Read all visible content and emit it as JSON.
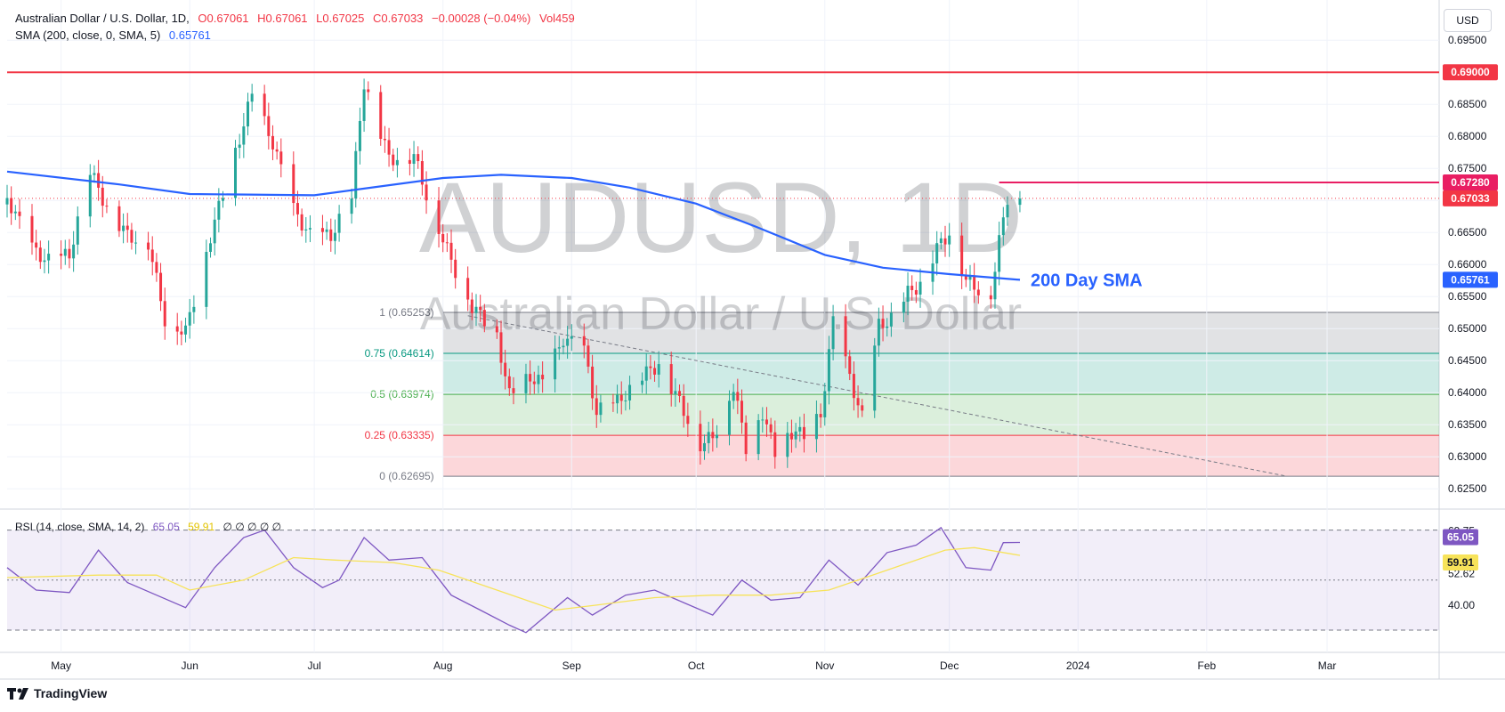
{
  "header": {
    "symbol": "Australian Dollar / U.S. Dollar, 1D,",
    "open": "O0.67061",
    "high": "H0.67061",
    "low": "L0.67025",
    "close": "C0.67033",
    "change": "−0.00028 (−0.04%)",
    "volume": "Vol459",
    "sma_label": "SMA (200, close, 0, SMA, 5)",
    "sma_value": "0.65761"
  },
  "currency": "USD",
  "rsi_header": {
    "label": "RSI (14, close, SMA, 14, 2)",
    "rsi_value": "65.05",
    "sma_value": "59.91",
    "extras": "∅ ∅   ∅ ∅ ∅"
  },
  "watermark": {
    "symbol": "AUDUSD, 1D",
    "name": "Australian Dollar / U.S. Dollar"
  },
  "branding": "TradingView",
  "colors": {
    "up": "#26a69a",
    "down": "#f23645",
    "sma": "#2962ff",
    "rsi": "#7e57c2",
    "rsi_ma": "#f7e35a",
    "resistance": "#f23645"
  },
  "chart_data": [
    {
      "type": "candlestick",
      "title": "Australian Dollar / U.S. Dollar, 1D",
      "y_ticks": [
        0.695,
        0.69,
        0.685,
        0.68,
        0.675,
        0.67,
        0.665,
        0.66,
        0.655,
        0.65,
        0.645,
        0.64,
        0.635,
        0.63,
        0.625
      ],
      "ylim": [
        0.6235,
        0.6985
      ],
      "x_labels": [
        "May",
        "Jun",
        "Jul",
        "Aug",
        "Sep",
        "Oct",
        "Nov",
        "Dec",
        "2024",
        "Feb",
        "Mar"
      ],
      "x_label_dates": [
        "2023-05-01",
        "2023-06-01",
        "2023-07-01",
        "2023-08-01",
        "2023-09-01",
        "2023-10-01",
        "2023-11-01",
        "2023-12-01",
        "2024-01-01",
        "2024-02-01",
        "2024-03-01"
      ],
      "xlim": [
        "2023-04-18",
        "2024-03-28"
      ],
      "horizontal_lines": [
        {
          "value": 0.69,
          "label": "0.69000",
          "color": "#f23645"
        },
        {
          "value": 0.6728,
          "label": "0.67280",
          "color": "#e91e63",
          "start": "2023-12-13"
        },
        {
          "value": 0.67033,
          "label": "0.67033",
          "color": "#f23645",
          "style": "dotted"
        }
      ],
      "sma_label": {
        "text": "200 Day SMA",
        "value": 0.65761,
        "axis_label": "0.65761"
      },
      "fib_retracement": {
        "start": "2023-08-01",
        "levels": [
          {
            "ratio": "1",
            "value": 0.65253,
            "label": "1 (0.65253)"
          },
          {
            "ratio": "0.75",
            "value": 0.64614,
            "label": "0.75 (0.64614)"
          },
          {
            "ratio": "0.5",
            "value": 0.63974,
            "label": "0.5 (0.63974)"
          },
          {
            "ratio": "0.25",
            "value": 0.63335,
            "label": "0.25 (0.63335)"
          },
          {
            "ratio": "0",
            "value": 0.62695,
            "label": "0 (0.62695)"
          }
        ]
      },
      "trendline": {
        "from": {
          "date": "2023-08-07",
          "value": 0.652
        },
        "to": {
          "date": "2024-02-20",
          "value": 0.627
        }
      },
      "anchors_close": [
        [
          "2023-04-18",
          0.6705
        ],
        [
          "2023-04-24",
          0.6625
        ],
        [
          "2023-04-28",
          0.6605
        ],
        [
          "2023-05-03",
          0.6615
        ],
        [
          "2023-05-08",
          0.6745
        ],
        [
          "2023-05-12",
          0.669
        ],
        [
          "2023-05-17",
          0.6645
        ],
        [
          "2023-05-22",
          0.6635
        ],
        [
          "2023-05-26",
          0.6515
        ],
        [
          "2023-05-31",
          0.6495
        ],
        [
          "2023-06-06",
          0.6645
        ],
        [
          "2023-06-12",
          0.6775
        ],
        [
          "2023-06-16",
          0.6865
        ],
        [
          "2023-06-21",
          0.679
        ],
        [
          "2023-06-26",
          0.6685
        ],
        [
          "2023-06-30",
          0.6645
        ],
        [
          "2023-07-05",
          0.6645
        ],
        [
          "2023-07-10",
          0.6705
        ],
        [
          "2023-07-13",
          0.6885
        ],
        [
          "2023-07-19",
          0.6765
        ],
        [
          "2023-07-25",
          0.677
        ],
        [
          "2023-07-28",
          0.671
        ],
        [
          "2023-08-03",
          0.6605
        ],
        [
          "2023-08-08",
          0.6535
        ],
        [
          "2023-08-14",
          0.649
        ],
        [
          "2023-08-17",
          0.6395
        ],
        [
          "2023-08-22",
          0.6425
        ],
        [
          "2023-08-25",
          0.6415
        ],
        [
          "2023-08-30",
          0.6485
        ],
        [
          "2023-09-04",
          0.6465
        ],
        [
          "2023-09-07",
          0.637
        ],
        [
          "2023-09-12",
          0.6385
        ],
        [
          "2023-09-18",
          0.6425
        ],
        [
          "2023-09-22",
          0.6445
        ],
        [
          "2023-09-27",
          0.6385
        ],
        [
          "2023-10-02",
          0.632
        ],
        [
          "2023-10-05",
          0.633
        ],
        [
          "2023-10-10",
          0.641
        ],
        [
          "2023-10-13",
          0.6315
        ],
        [
          "2023-10-17",
          0.637
        ],
        [
          "2023-10-20",
          0.6305
        ],
        [
          "2023-10-25",
          0.6345
        ],
        [
          "2023-10-27",
          0.6325
        ],
        [
          "2023-10-31",
          0.6365
        ],
        [
          "2023-11-03",
          0.651
        ],
        [
          "2023-11-07",
          0.6425
        ],
        [
          "2023-11-10",
          0.636
        ],
        [
          "2023-11-14",
          0.6505
        ],
        [
          "2023-11-17",
          0.6515
        ],
        [
          "2023-11-21",
          0.6555
        ],
        [
          "2023-11-24",
          0.657
        ],
        [
          "2023-11-28",
          0.6625
        ],
        [
          "2023-12-01",
          0.665
        ],
        [
          "2023-12-05",
          0.6575
        ],
        [
          "2023-12-07",
          0.6565
        ],
        [
          "2023-12-11",
          0.6555
        ],
        [
          "2023-12-13",
          0.6635
        ],
        [
          "2023-12-15",
          0.6705
        ],
        [
          "2023-12-18",
          0.6703
        ]
      ],
      "sma_points": [
        [
          "2023-04-18",
          0.6745
        ],
        [
          "2023-05-15",
          0.6725
        ],
        [
          "2023-06-01",
          0.671
        ],
        [
          "2023-07-01",
          0.6708
        ],
        [
          "2023-08-01",
          0.6735
        ],
        [
          "2023-08-15",
          0.674
        ],
        [
          "2023-09-01",
          0.6735
        ],
        [
          "2023-09-15",
          0.672
        ],
        [
          "2023-10-01",
          0.6695
        ],
        [
          "2023-10-15",
          0.666
        ],
        [
          "2023-11-01",
          0.6615
        ],
        [
          "2023-11-15",
          0.6595
        ],
        [
          "2023-12-01",
          0.6585
        ],
        [
          "2023-12-18",
          0.65761
        ]
      ]
    },
    {
      "type": "line",
      "title": "RSI (14, close, SMA, 14, 2)",
      "y_ticks": [
        69.75,
        52.62,
        40.0
      ],
      "band": [
        70,
        30
      ],
      "ylim": [
        27.5,
        72
      ],
      "series": [
        {
          "name": "RSI",
          "value": 65.05,
          "points": [
            [
              "2023-04-18",
              55
            ],
            [
              "2023-04-25",
              46
            ],
            [
              "2023-05-03",
              45
            ],
            [
              "2023-05-10",
              62
            ],
            [
              "2023-05-17",
              49
            ],
            [
              "2023-05-24",
              44
            ],
            [
              "2023-05-31",
              39
            ],
            [
              "2023-06-07",
              55
            ],
            [
              "2023-06-14",
              67
            ],
            [
              "2023-06-19",
              70
            ],
            [
              "2023-06-26",
              55
            ],
            [
              "2023-07-03",
              47
            ],
            [
              "2023-07-07",
              50
            ],
            [
              "2023-07-13",
              67
            ],
            [
              "2023-07-19",
              58
            ],
            [
              "2023-07-27",
              59
            ],
            [
              "2023-08-03",
              44
            ],
            [
              "2023-08-10",
              38
            ],
            [
              "2023-08-17",
              32
            ],
            [
              "2023-08-21",
              29
            ],
            [
              "2023-08-31",
              43
            ],
            [
              "2023-09-06",
              36
            ],
            [
              "2023-09-14",
              44
            ],
            [
              "2023-09-21",
              46
            ],
            [
              "2023-09-28",
              41
            ],
            [
              "2023-10-05",
              36
            ],
            [
              "2023-10-12",
              50
            ],
            [
              "2023-10-19",
              42
            ],
            [
              "2023-10-26",
              43
            ],
            [
              "2023-11-02",
              58
            ],
            [
              "2023-11-09",
              48
            ],
            [
              "2023-11-16",
              61
            ],
            [
              "2023-11-23",
              64
            ],
            [
              "2023-11-29",
              71
            ],
            [
              "2023-12-05",
              55
            ],
            [
              "2023-12-11",
              54
            ],
            [
              "2023-12-14",
              65
            ],
            [
              "2023-12-18",
              65.05
            ]
          ]
        },
        {
          "name": "RSI SMA",
          "value": 59.91,
          "points": [
            [
              "2023-04-18",
              51
            ],
            [
              "2023-05-10",
              52
            ],
            [
              "2023-05-24",
              52
            ],
            [
              "2023-06-01",
              46
            ],
            [
              "2023-06-14",
              50
            ],
            [
              "2023-06-26",
              59
            ],
            [
              "2023-07-06",
              58
            ],
            [
              "2023-07-20",
              57
            ],
            [
              "2023-07-31",
              54
            ],
            [
              "2023-08-14",
              46
            ],
            [
              "2023-08-28",
              38
            ],
            [
              "2023-09-07",
              40
            ],
            [
              "2023-09-21",
              43
            ],
            [
              "2023-10-05",
              44
            ],
            [
              "2023-10-19",
              44
            ],
            [
              "2023-11-02",
              46
            ],
            [
              "2023-11-16",
              54
            ],
            [
              "2023-11-30",
              62
            ],
            [
              "2023-12-07",
              63
            ],
            [
              "2023-12-18",
              59.91
            ]
          ]
        }
      ]
    }
  ]
}
